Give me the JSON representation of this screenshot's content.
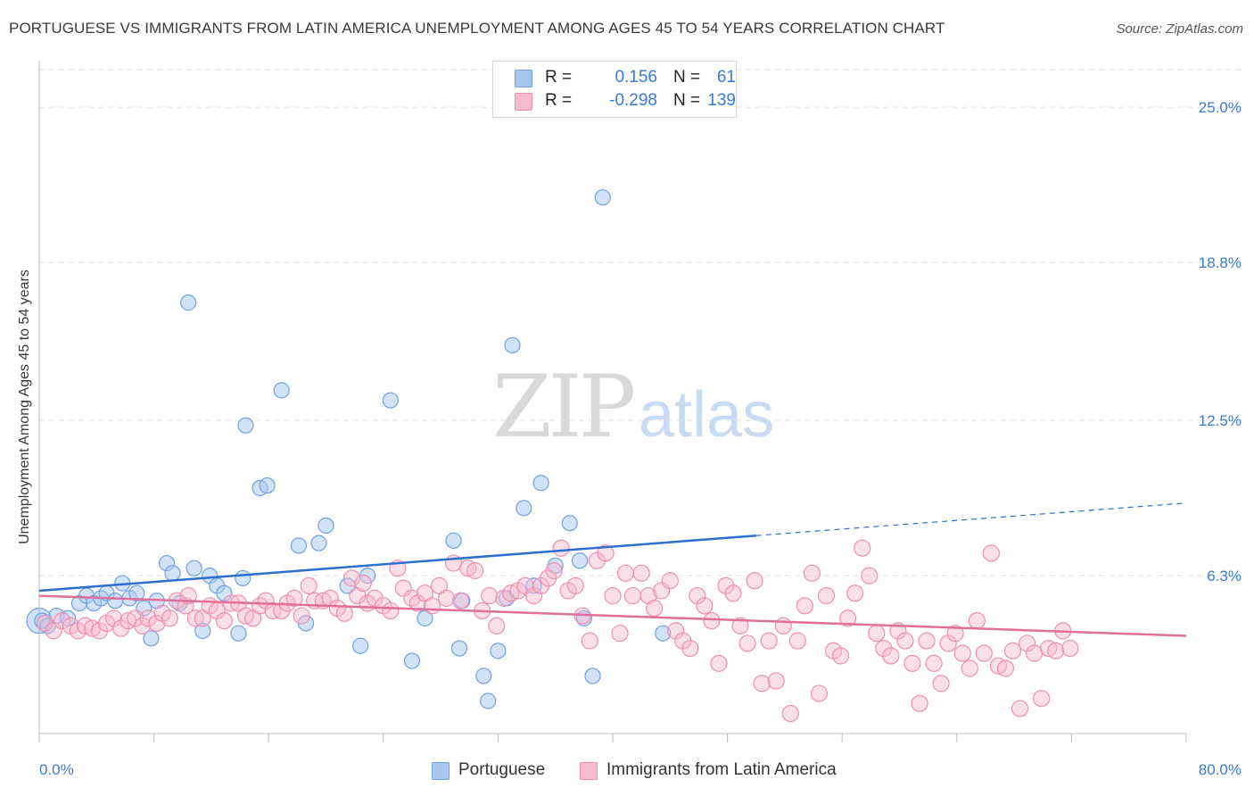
{
  "header": {
    "title": "PORTUGUESE VS IMMIGRANTS FROM LATIN AMERICA UNEMPLOYMENT AMONG AGES 45 TO 54 YEARS CORRELATION CHART",
    "source": "Source: ZipAtlas.com"
  },
  "watermark": {
    "zip": "ZIP",
    "atlas": "atlas"
  },
  "legend": {
    "series1": {
      "r_label": "R =",
      "r_value": "0.156",
      "n_label": "N =",
      "n_value": "61",
      "color": "#a7c7f0"
    },
    "series2": {
      "r_label": "R =",
      "r_value": "-0.298",
      "n_label": "N =",
      "n_value": "139",
      "color": "#f7b9cd"
    }
  },
  "bottom_legend": {
    "series1": "Portuguese",
    "series2": "Immigrants from Latin America"
  },
  "chart_data": {
    "type": "scatter",
    "title": "PORTUGUESE VS IMMIGRANTS FROM LATIN AMERICA UNEMPLOYMENT AMONG AGES 45 TO 54 YEARS CORRELATION CHART",
    "xlabel": "",
    "ylabel": "Unemployment Among Ages 45 to 54 years",
    "xlim": [
      0,
      80
    ],
    "ylim": [
      0,
      26.5
    ],
    "x_tick_labels": [
      "0.0%",
      "80.0%"
    ],
    "y_ticks": [
      6.3,
      12.5,
      18.8,
      25.0
    ],
    "y_tick_labels": [
      "6.3%",
      "12.5%",
      "18.8%",
      "25.0%"
    ],
    "grid": true,
    "legend_position": "top-center",
    "series": [
      {
        "name": "Portuguese",
        "color": "#6fa0e0",
        "fill": "#a7c7f0",
        "trend": {
          "x0": 0,
          "y0": 5.7,
          "x1": 50,
          "y1": 7.9,
          "dash_to_x": 80,
          "dash_to_y": 9.2,
          "color": "#2d6fcf"
        },
        "points": [
          [
            0.2,
            4.5
          ],
          [
            0.6,
            4.3
          ],
          [
            1.2,
            4.7
          ],
          [
            2.0,
            4.6
          ],
          [
            2.8,
            5.2
          ],
          [
            3.3,
            5.5
          ],
          [
            3.8,
            5.2
          ],
          [
            4.3,
            5.4
          ],
          [
            4.7,
            5.6
          ],
          [
            5.3,
            5.3
          ],
          [
            5.8,
            6.0
          ],
          [
            6.3,
            5.4
          ],
          [
            6.8,
            5.6
          ],
          [
            7.3,
            5.0
          ],
          [
            7.8,
            3.8
          ],
          [
            8.2,
            5.3
          ],
          [
            8.9,
            6.8
          ],
          [
            9.3,
            6.4
          ],
          [
            9.8,
            5.2
          ],
          [
            10.4,
            17.2
          ],
          [
            10.8,
            6.6
          ],
          [
            11.4,
            4.1
          ],
          [
            11.9,
            6.3
          ],
          [
            12.4,
            5.9
          ],
          [
            12.9,
            5.6
          ],
          [
            13.9,
            4.0
          ],
          [
            14.2,
            6.2
          ],
          [
            14.4,
            12.3
          ],
          [
            15.4,
            9.8
          ],
          [
            15.9,
            9.9
          ],
          [
            16.9,
            13.7
          ],
          [
            18.1,
            7.5
          ],
          [
            18.6,
            4.4
          ],
          [
            19.5,
            7.6
          ],
          [
            20.0,
            8.3
          ],
          [
            21.5,
            5.9
          ],
          [
            22.4,
            3.5
          ],
          [
            22.9,
            6.3
          ],
          [
            24.5,
            13.3
          ],
          [
            26.0,
            2.9
          ],
          [
            26.9,
            4.6
          ],
          [
            28.9,
            7.7
          ],
          [
            29.3,
            3.4
          ],
          [
            29.5,
            5.3
          ],
          [
            31.0,
            2.3
          ],
          [
            31.3,
            1.3
          ],
          [
            32.0,
            3.3
          ],
          [
            32.6,
            5.4
          ],
          [
            33.0,
            15.5
          ],
          [
            33.8,
            9.0
          ],
          [
            34.5,
            5.9
          ],
          [
            35.0,
            10.0
          ],
          [
            36.0,
            6.7
          ],
          [
            37.0,
            8.4
          ],
          [
            37.7,
            6.9
          ],
          [
            38.0,
            4.6
          ],
          [
            38.6,
            2.3
          ],
          [
            39.3,
            21.4
          ],
          [
            43.5,
            4.0
          ]
        ],
        "big_points": [
          [
            0.0,
            4.5
          ]
        ]
      },
      {
        "name": "Immigrants from Latin America",
        "color": "#ee8fb0",
        "fill": "#f7b9cd",
        "trend": {
          "x0": 0,
          "y0": 5.5,
          "x1": 80,
          "y1": 3.9,
          "color": "#e0709a"
        },
        "points": [
          [
            0.4,
            4.4
          ],
          [
            1.0,
            4.1
          ],
          [
            1.6,
            4.5
          ],
          [
            2.2,
            4.3
          ],
          [
            2.7,
            4.1
          ],
          [
            3.2,
            4.3
          ],
          [
            3.7,
            4.2
          ],
          [
            4.2,
            4.1
          ],
          [
            4.7,
            4.4
          ],
          [
            5.2,
            4.6
          ],
          [
            5.7,
            4.2
          ],
          [
            6.2,
            4.5
          ],
          [
            6.7,
            4.6
          ],
          [
            7.2,
            4.3
          ],
          [
            7.6,
            4.6
          ],
          [
            8.2,
            4.4
          ],
          [
            8.6,
            4.8
          ],
          [
            9.1,
            4.6
          ],
          [
            9.6,
            5.3
          ],
          [
            10.2,
            5.1
          ],
          [
            10.4,
            5.5
          ],
          [
            10.9,
            4.6
          ],
          [
            11.4,
            4.6
          ],
          [
            11.9,
            5.1
          ],
          [
            12.4,
            4.9
          ],
          [
            12.9,
            4.5
          ],
          [
            13.4,
            5.2
          ],
          [
            13.9,
            5.2
          ],
          [
            14.4,
            4.7
          ],
          [
            14.9,
            4.6
          ],
          [
            15.4,
            5.1
          ],
          [
            15.8,
            5.3
          ],
          [
            16.3,
            4.9
          ],
          [
            16.9,
            4.9
          ],
          [
            17.3,
            5.2
          ],
          [
            17.8,
            5.4
          ],
          [
            18.3,
            4.7
          ],
          [
            18.8,
            5.9
          ],
          [
            19.2,
            5.3
          ],
          [
            19.8,
            5.3
          ],
          [
            20.3,
            5.4
          ],
          [
            20.8,
            5.0
          ],
          [
            21.3,
            4.8
          ],
          [
            21.8,
            6.2
          ],
          [
            22.2,
            5.5
          ],
          [
            22.6,
            6.0
          ],
          [
            22.9,
            5.2
          ],
          [
            23.4,
            5.4
          ],
          [
            24.0,
            5.1
          ],
          [
            24.5,
            4.9
          ],
          [
            25.0,
            6.6
          ],
          [
            25.4,
            5.8
          ],
          [
            26.0,
            5.4
          ],
          [
            26.4,
            5.2
          ],
          [
            26.9,
            5.6
          ],
          [
            27.4,
            5.1
          ],
          [
            27.9,
            5.9
          ],
          [
            28.4,
            5.4
          ],
          [
            28.9,
            6.8
          ],
          [
            29.4,
            5.3
          ],
          [
            29.9,
            6.6
          ],
          [
            30.4,
            6.5
          ],
          [
            30.9,
            4.9
          ],
          [
            31.4,
            5.5
          ],
          [
            31.9,
            4.3
          ],
          [
            32.4,
            5.4
          ],
          [
            32.9,
            5.6
          ],
          [
            33.4,
            5.7
          ],
          [
            33.9,
            5.9
          ],
          [
            34.5,
            5.5
          ],
          [
            35.0,
            5.9
          ],
          [
            35.5,
            6.2
          ],
          [
            35.9,
            6.5
          ],
          [
            36.4,
            7.4
          ],
          [
            36.9,
            5.7
          ],
          [
            37.4,
            5.9
          ],
          [
            37.9,
            4.7
          ],
          [
            38.4,
            3.7
          ],
          [
            38.9,
            6.9
          ],
          [
            39.5,
            7.2
          ],
          [
            40.0,
            5.5
          ],
          [
            40.5,
            4.0
          ],
          [
            40.9,
            6.4
          ],
          [
            41.4,
            5.5
          ],
          [
            42.0,
            6.4
          ],
          [
            42.5,
            5.5
          ],
          [
            42.9,
            5.0
          ],
          [
            43.4,
            5.7
          ],
          [
            44.0,
            6.1
          ],
          [
            44.4,
            4.1
          ],
          [
            44.9,
            3.7
          ],
          [
            45.4,
            3.4
          ],
          [
            45.9,
            5.5
          ],
          [
            46.4,
            5.1
          ],
          [
            46.9,
            4.5
          ],
          [
            47.4,
            2.8
          ],
          [
            47.9,
            5.9
          ],
          [
            48.4,
            5.6
          ],
          [
            48.9,
            4.3
          ],
          [
            49.4,
            3.6
          ],
          [
            49.9,
            6.1
          ],
          [
            50.4,
            2.0
          ],
          [
            50.9,
            3.7
          ],
          [
            51.4,
            2.1
          ],
          [
            51.9,
            4.3
          ],
          [
            52.4,
            0.8
          ],
          [
            52.9,
            3.7
          ],
          [
            53.4,
            5.1
          ],
          [
            53.9,
            6.4
          ],
          [
            54.4,
            1.6
          ],
          [
            54.9,
            5.5
          ],
          [
            55.4,
            3.3
          ],
          [
            55.9,
            3.1
          ],
          [
            56.4,
            4.6
          ],
          [
            56.9,
            5.6
          ],
          [
            57.4,
            7.4
          ],
          [
            57.9,
            6.3
          ],
          [
            58.4,
            4.0
          ],
          [
            58.9,
            3.4
          ],
          [
            59.4,
            3.1
          ],
          [
            59.9,
            4.1
          ],
          [
            60.4,
            3.7
          ],
          [
            60.9,
            2.8
          ],
          [
            61.4,
            1.2
          ],
          [
            61.9,
            3.7
          ],
          [
            62.4,
            2.8
          ],
          [
            62.9,
            2.0
          ],
          [
            63.4,
            3.6
          ],
          [
            63.9,
            4.0
          ],
          [
            64.4,
            3.2
          ],
          [
            64.9,
            2.6
          ],
          [
            65.4,
            4.5
          ],
          [
            65.9,
            3.2
          ],
          [
            66.4,
            7.2
          ],
          [
            66.9,
            2.7
          ],
          [
            67.4,
            2.6
          ],
          [
            67.9,
            3.3
          ],
          [
            68.4,
            1.0
          ],
          [
            68.9,
            3.6
          ],
          [
            69.4,
            3.2
          ],
          [
            69.9,
            1.4
          ],
          [
            70.4,
            3.4
          ],
          [
            70.9,
            3.3
          ],
          [
            71.4,
            4.1
          ],
          [
            71.9,
            3.4
          ]
        ]
      }
    ]
  }
}
